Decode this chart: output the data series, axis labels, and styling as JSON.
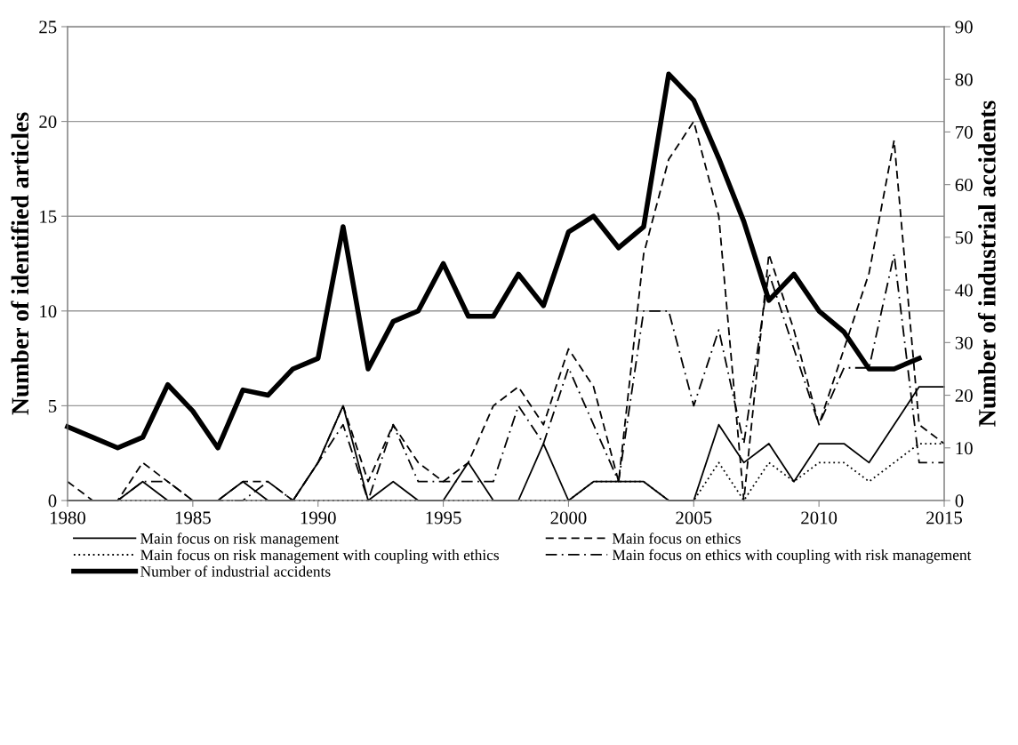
{
  "chart_data": {
    "type": "line",
    "ylabel": "Number of identified articles",
    "y2label": "Number of industrial accidents",
    "xlim": [
      1980,
      2015
    ],
    "xticks": [
      1980,
      1985,
      1990,
      1995,
      2000,
      2005,
      2010,
      2015
    ],
    "ylim": [
      0,
      25
    ],
    "yticks": [
      0,
      5,
      10,
      15,
      20,
      25
    ],
    "y2lim": [
      0,
      90
    ],
    "y2ticks": [
      0,
      10,
      20,
      30,
      40,
      50,
      60,
      70,
      80,
      90
    ],
    "grid": "y",
    "legend": "bottom",
    "x": [
      1980,
      1981,
      1982,
      1983,
      1984,
      1985,
      1986,
      1987,
      1988,
      1989,
      1990,
      1991,
      1992,
      1993,
      1994,
      1995,
      1996,
      1997,
      1998,
      1999,
      2000,
      2001,
      2002,
      2003,
      2004,
      2005,
      2006,
      2007,
      2008,
      2009,
      2010,
      2011,
      2012,
      2013,
      2014,
      2015
    ],
    "series": [
      {
        "name": "Main focus on risk management",
        "color": "#000000",
        "line_style": "solid",
        "values": [
          0,
          0,
          0,
          1,
          0,
          0,
          0,
          1,
          0,
          0,
          2,
          5,
          0,
          1,
          0,
          0,
          2,
          0,
          0,
          3,
          0,
          1,
          1,
          1,
          0,
          0,
          4,
          2,
          3,
          1,
          3,
          3,
          2,
          4,
          6,
          6
        ]
      },
      {
        "name": "Main focus on ethics",
        "color": "#000000",
        "line_style": "dashed",
        "values": [
          1,
          0,
          0,
          2,
          1,
          0,
          0,
          1,
          1,
          0,
          2,
          5,
          1,
          4,
          2,
          1,
          2,
          5,
          6,
          4,
          8,
          6,
          1,
          13,
          18,
          20,
          15,
          0,
          13,
          9,
          4,
          8,
          12,
          19,
          4,
          3
        ]
      },
      {
        "name": "Main focus on risk management with coupling with ethics",
        "color": "#000000",
        "line_style": "dotted",
        "values": [
          0,
          0,
          0,
          0,
          0,
          0,
          0,
          0,
          0,
          0,
          0,
          0,
          0,
          0,
          0,
          0,
          0,
          0,
          0,
          0,
          0,
          1,
          1,
          1,
          0,
          0,
          2,
          0,
          2,
          1,
          2,
          2,
          1,
          2,
          3,
          3
        ]
      },
      {
        "name": "Main focus on ethics with coupling with risk management",
        "color": "#000000",
        "line_style": "dashdot",
        "values": [
          0,
          0,
          0,
          1,
          1,
          0,
          0,
          0,
          1,
          0,
          2,
          4,
          0,
          4,
          1,
          1,
          1,
          1,
          5,
          3,
          7,
          4,
          1,
          10,
          10,
          5,
          9,
          3,
          12,
          8,
          4,
          7,
          7,
          13,
          2,
          2
        ]
      },
      {
        "name": "Number of industrial accidents",
        "color": "#000000",
        "line_style": "solid",
        "axis": "y2",
        "values": [
          14,
          12,
          10,
          12,
          22,
          17,
          10,
          21,
          20,
          25,
          27,
          52,
          25,
          34,
          36,
          45,
          35,
          35,
          43,
          37,
          51,
          54,
          48,
          52,
          81,
          76,
          65,
          53,
          38,
          43,
          36,
          32,
          25,
          25,
          27,
          null
        ]
      }
    ]
  }
}
